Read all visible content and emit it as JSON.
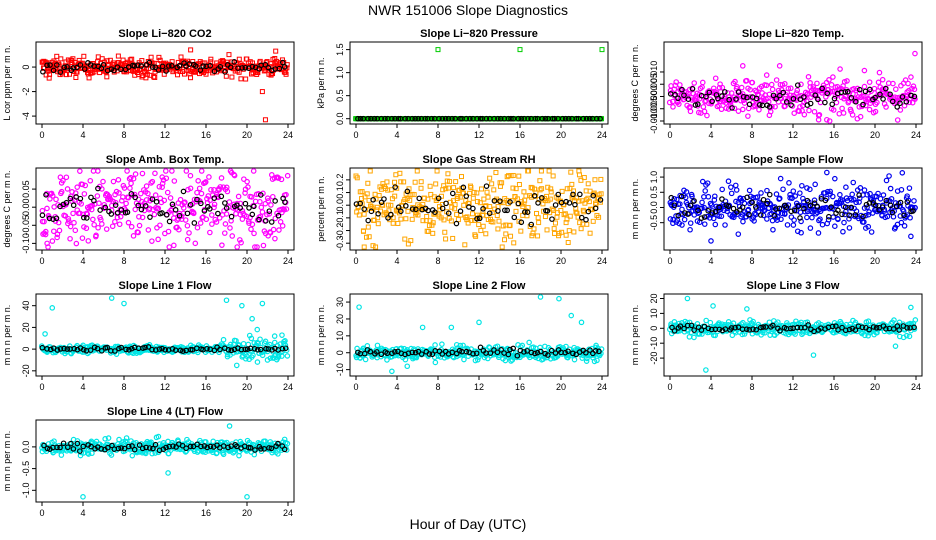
{
  "title": "NWR  151006  Slope Diagnostics",
  "x_axis_title": "Hour of Day (UTC)",
  "x_ticks": [
    "0",
    "4",
    "8",
    "12",
    "16",
    "20",
    "24"
  ],
  "chart_data": [
    {
      "type": "scatter",
      "title": "Slope Li−820 CO2",
      "ylabel": "L cor ppm per m n.",
      "ylim": [
        -4.4,
        1.8
      ],
      "xlim": [
        0,
        24
      ],
      "yticks": [
        "-4",
        "-2",
        "0"
      ],
      "color": "#ff0000",
      "marker": "square",
      "spread": 0.55,
      "outliers": [
        [
          21.5,
          -2.0
        ],
        [
          21.8,
          -4.3
        ],
        [
          14.5,
          1.4
        ],
        [
          0.7,
          -0.9
        ],
        [
          22.8,
          1.3
        ]
      ]
    },
    {
      "type": "scatter",
      "title": "Slope Li−820 Pressure",
      "ylabel": "kPa per m n.",
      "ylim": [
        -0.05,
        1.6
      ],
      "xlim": [
        0,
        24
      ],
      "yticks": [
        "0.0",
        "0.5",
        "1.0",
        "1.5"
      ],
      "color": "#00cc00",
      "marker": "square",
      "spread": 0.0,
      "outliers": [
        [
          8.0,
          1.5
        ],
        [
          16.0,
          1.5
        ],
        [
          24.0,
          1.5
        ]
      ]
    },
    {
      "type": "scatter",
      "title": "Slope Li−820 Temp.",
      "ylabel": "degrees C per m n.",
      "ylim": [
        -0.01,
        0.021
      ],
      "xlim": [
        0,
        24
      ],
      "yticks": [
        "-0.010",
        "-0.005",
        "0.000",
        "0.005",
        "0.010"
      ],
      "color": "#ff00ff",
      "marker": "circle",
      "spread": 0.0055,
      "outliers": [
        [
          7.1,
          0.0125
        ],
        [
          10.7,
          0.0125
        ],
        [
          14.5,
          -0.0095
        ],
        [
          15.3,
          -0.0095
        ],
        [
          23.9,
          0.0175
        ]
      ]
    },
    {
      "type": "scatter",
      "title": "Slope Amb. Box Temp.",
      "ylabel": "degrees C per m n.",
      "ylim": [
        -0.11,
        0.1
      ],
      "xlim": [
        0,
        24
      ],
      "yticks": [
        "-0.10",
        "-0.05",
        "0.00",
        "0.05"
      ],
      "color": "#ff00ff",
      "marker": "circle",
      "spread": 0.075,
      "outliers": [
        [
          9.8,
          0.093
        ],
        [
          0.5,
          -0.1
        ]
      ]
    },
    {
      "type": "scatter",
      "title": "Slope Gas Stream RH",
      "ylabel": "percent per m n.",
      "ylim": [
        -0.33,
        0.27
      ],
      "xlim": [
        0,
        24
      ],
      "yticks": [
        "-0.3",
        "-0.2",
        "-0.1",
        "0.0",
        "0.1",
        "0.2"
      ],
      "color": "#ffa500",
      "marker": "square",
      "spread": 0.2,
      "outliers": [
        [
          0.8,
          -0.33
        ],
        [
          21.8,
          0.24
        ]
      ]
    },
    {
      "type": "scatter",
      "title": "Slope Sample Flow",
      "ylabel": "m m n per m n.",
      "ylim": [
        -1.3,
        1.2
      ],
      "xlim": [
        0,
        24
      ],
      "yticks": [
        "-0.5",
        "0.0",
        "0.5",
        "1.0"
      ],
      "color": "#0000ee",
      "marker": "circle",
      "spread": 0.55,
      "outliers": [
        [
          15.3,
          1.15
        ],
        [
          4.0,
          -1.1
        ],
        [
          23.5,
          -0.95
        ]
      ]
    },
    {
      "type": "scatter",
      "title": "Slope Line 1 Flow",
      "ylabel": "m m n per m n.",
      "ylim": [
        -22,
        48
      ],
      "xlim": [
        0,
        24
      ],
      "yticks": [
        "-20",
        "0",
        "20",
        "40"
      ],
      "color": "#00e5e5",
      "marker": "circle",
      "spread": 2.5,
      "outliers": [
        [
          1.0,
          38
        ],
        [
          0.3,
          14
        ],
        [
          6.8,
          47
        ],
        [
          8.0,
          42
        ],
        [
          18.0,
          45
        ],
        [
          19.5,
          40
        ],
        [
          21.5,
          42
        ],
        [
          20.5,
          28
        ],
        [
          19.0,
          -15
        ],
        [
          22.0,
          -10
        ],
        [
          23.0,
          -8
        ],
        [
          21.0,
          18
        ],
        [
          23.6,
          5
        ],
        [
          22.7,
          12
        ]
      ]
    },
    {
      "type": "scatter",
      "title": "Slope Line 2 Flow",
      "ylabel": "m m n per m n.",
      "ylim": [
        -12,
        33
      ],
      "xlim": [
        0,
        24
      ],
      "yticks": [
        "-10",
        "0",
        "10",
        "20",
        "30"
      ],
      "color": "#00e5e5",
      "marker": "circle",
      "spread": 3.0,
      "outliers": [
        [
          0.3,
          27
        ],
        [
          6.5,
          15
        ],
        [
          9.3,
          15
        ],
        [
          12.0,
          18
        ],
        [
          18.0,
          33
        ],
        [
          19.8,
          32
        ],
        [
          21.0,
          22
        ],
        [
          22.0,
          18
        ],
        [
          3.5,
          -11
        ],
        [
          5.0,
          -8
        ],
        [
          22.5,
          -5
        ]
      ]
    },
    {
      "type": "scatter",
      "title": "Slope Line 3 Flow",
      "ylabel": "m m n per m n.",
      "ylim": [
        -30,
        21
      ],
      "xlim": [
        0,
        24
      ],
      "yticks": [
        "-20",
        "-10",
        "0",
        "10",
        "20"
      ],
      "color": "#00e5e5",
      "marker": "circle",
      "spread": 3.5,
      "outliers": [
        [
          1.7,
          20
        ],
        [
          3.5,
          -28
        ],
        [
          4.2,
          15
        ],
        [
          7.5,
          13
        ],
        [
          14.0,
          -18
        ],
        [
          22.0,
          -12
        ],
        [
          23.5,
          14
        ]
      ]
    },
    {
      "type": "scatter",
      "title": "Slope Line 4 (LT) Flow",
      "ylabel": "m m n per m n.",
      "ylim": [
        -1.2,
        0.55
      ],
      "xlim": [
        0,
        24
      ],
      "yticks": [
        "-1.0",
        "-0.5",
        "0.0"
      ],
      "color": "#00e5e5",
      "marker": "circle",
      "spread": 0.12,
      "outliers": [
        [
          4.0,
          -1.15
        ],
        [
          12.3,
          -0.6
        ],
        [
          20.0,
          -1.15
        ],
        [
          18.3,
          0.48
        ]
      ]
    }
  ]
}
